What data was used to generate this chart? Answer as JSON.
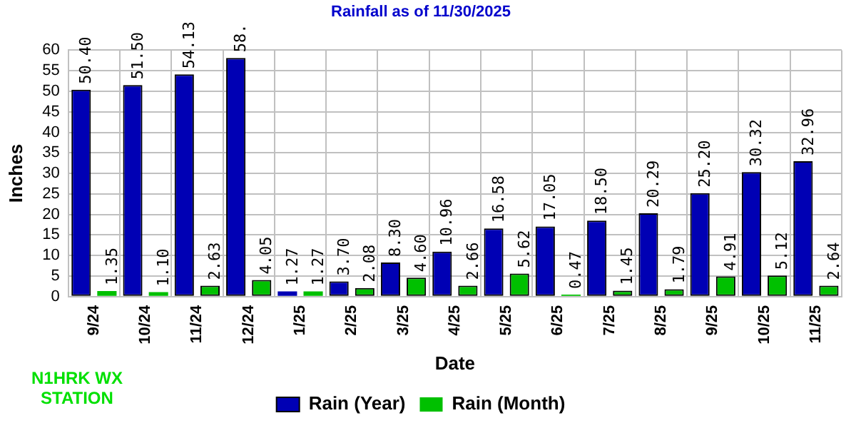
{
  "chart_data": {
    "type": "bar",
    "title": "Rainfall as of 11/30/2025",
    "xlabel": "Date",
    "ylabel": "Inches",
    "categories": [
      "9/24",
      "10/24",
      "11/24",
      "12/24",
      "1/25",
      "2/25",
      "3/25",
      "4/25",
      "5/25",
      "6/25",
      "7/25",
      "8/25",
      "9/25",
      "10/25",
      "11/25"
    ],
    "series": [
      {
        "name": "Rain (Year)",
        "color": "#0000b4",
        "values": [
          50.4,
          51.5,
          54.13,
          58.1,
          1.27,
          3.7,
          8.3,
          10.96,
          16.58,
          17.05,
          18.5,
          20.29,
          25.2,
          30.32,
          32.96
        ],
        "value_labels": [
          "50.40",
          "51.50",
          "54.13",
          "58.",
          "1.27",
          "3.70",
          "8.30",
          "10.96",
          "16.58",
          "17.05",
          "18.50",
          "20.29",
          "25.20",
          "30.32",
          "32.96"
        ]
      },
      {
        "name": "Rain (Month)",
        "color": "#00c000",
        "values": [
          1.35,
          1.1,
          2.63,
          4.05,
          1.27,
          2.08,
          4.6,
          2.66,
          5.62,
          0.47,
          1.45,
          1.79,
          4.91,
          5.12,
          2.64
        ],
        "value_labels": [
          "1.35",
          "1.10",
          "2.63",
          "4.05",
          "1.27",
          "2.08",
          "4.60",
          "2.66",
          "5.62",
          "0.47",
          "1.45",
          "1.79",
          "4.91",
          "5.12",
          "2.64"
        ]
      }
    ],
    "ylim": [
      0,
      60
    ],
    "yticks": [
      0,
      5,
      10,
      15,
      20,
      25,
      30,
      35,
      40,
      45,
      50,
      55,
      60
    ],
    "grid": true,
    "legend": "bottom",
    "annotations": [
      "N1HRK WX STATION"
    ]
  }
}
